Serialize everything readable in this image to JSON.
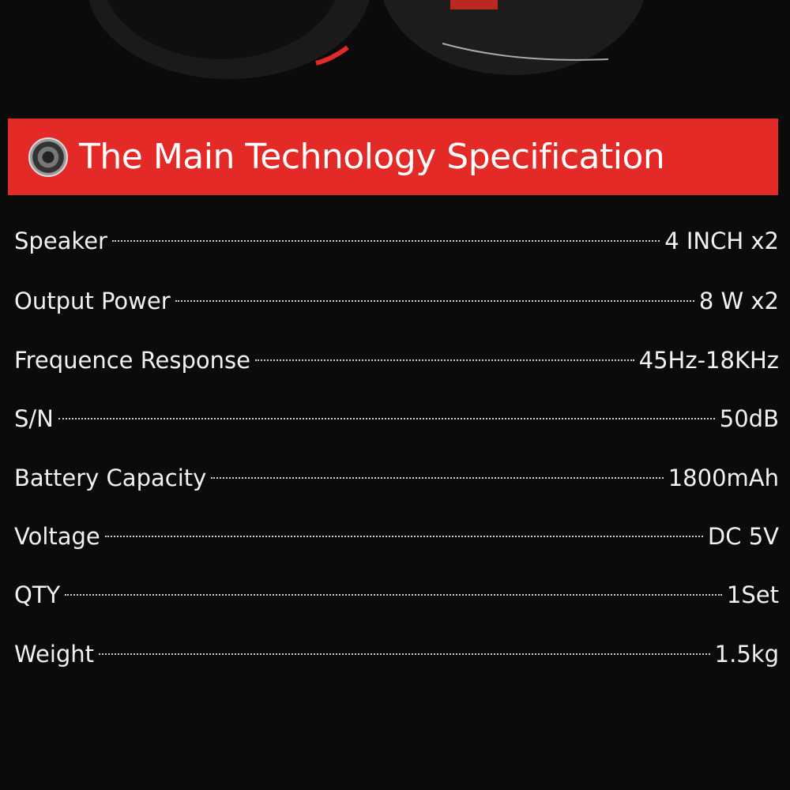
{
  "banner": {
    "title": "The Main Technology Specification",
    "icon": "speaker-icon",
    "color": "#e42a26"
  },
  "specs": [
    {
      "label": "Speaker",
      "value": "4 INCH x2"
    },
    {
      "label": "Output Power",
      "value": "8 W x2"
    },
    {
      "label": "Frequence Response",
      "value": "45Hz-18KHz"
    },
    {
      "label": "S/N",
      "value": "50dB"
    },
    {
      "label": "Battery Capacity",
      "value": "1800mAh"
    },
    {
      "label": "Voltage",
      "value": "DC 5V"
    },
    {
      "label": "QTY",
      "value": "1Set"
    },
    {
      "label": "Weight",
      "value": "1.5kg"
    }
  ]
}
